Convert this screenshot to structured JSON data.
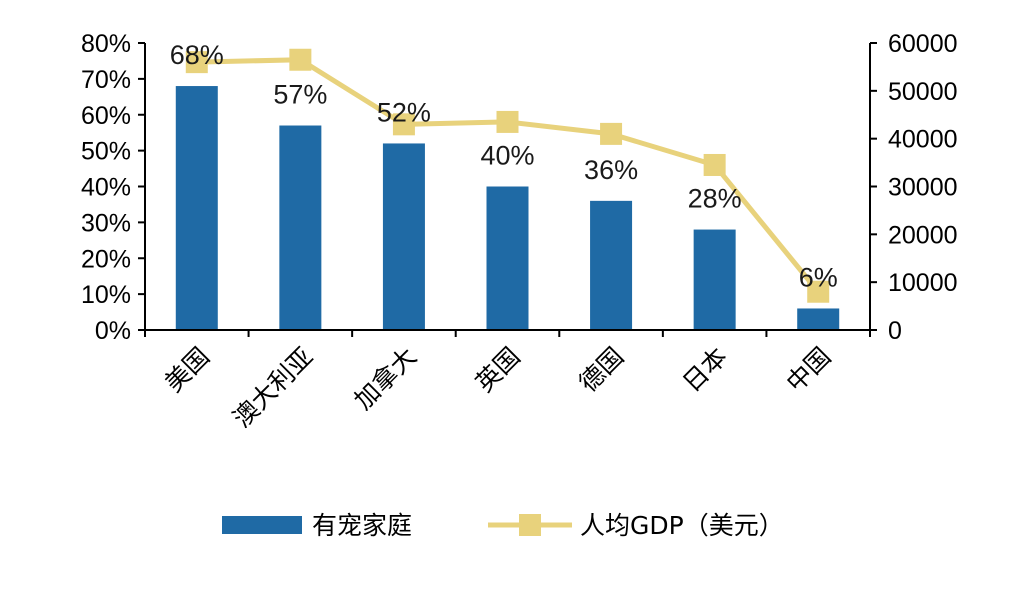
{
  "chart_data": {
    "type": "bar+line",
    "categories": [
      "美国",
      "澳大利亚",
      "加拿大",
      "英国",
      "德国",
      "日本",
      "中国"
    ],
    "series": [
      {
        "name": "有宠家庭",
        "type": "bar",
        "axis": "left",
        "values": [
          68,
          57,
          52,
          40,
          36,
          28,
          6
        ],
        "data_labels": [
          "68%",
          "57%",
          "52%",
          "40%",
          "36%",
          "28%",
          "6%"
        ],
        "color": "#1f6aa5"
      },
      {
        "name": "人均GDP（美元）",
        "type": "line",
        "axis": "right",
        "values": [
          56000,
          56500,
          43000,
          43500,
          41000,
          34500,
          8000
        ],
        "color": "#e8d27c"
      }
    ],
    "y_left": {
      "ylim": [
        0,
        80
      ],
      "ticks": [
        0,
        10,
        20,
        30,
        40,
        50,
        60,
        70,
        80
      ],
      "tick_labels": [
        "0%",
        "10%",
        "20%",
        "30%",
        "40%",
        "50%",
        "60%",
        "70%",
        "80%"
      ]
    },
    "y_right": {
      "ylim": [
        0,
        60000
      ],
      "ticks": [
        0,
        10000,
        20000,
        30000,
        40000,
        50000,
        60000
      ],
      "tick_labels": [
        "0",
        "10000",
        "20000",
        "30000",
        "40000",
        "50000",
        "60000"
      ]
    },
    "legend": {
      "position": "bottom-center",
      "entries": [
        "有宠家庭",
        "人均GDP（美元）"
      ]
    },
    "grid": false
  }
}
